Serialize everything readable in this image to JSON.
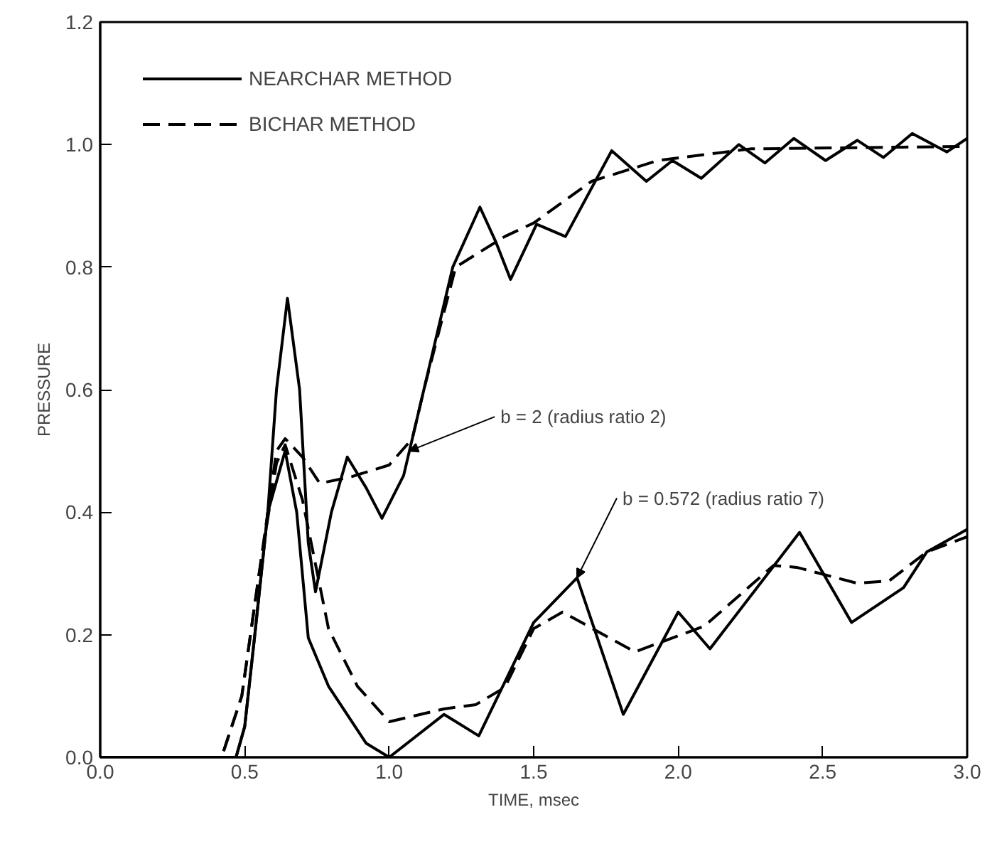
{
  "chart_data": {
    "type": "line",
    "xlabel": "TIME, msec",
    "ylabel": "PRESSURE",
    "xlim": [
      0,
      3.0
    ],
    "ylim": [
      0,
      1.2
    ],
    "xticks": [
      {
        "value": 0,
        "label": "0.0"
      },
      {
        "value": 0.5,
        "label": "0.5"
      },
      {
        "value": 1.0,
        "label": "1.0"
      },
      {
        "value": 1.5,
        "label": "1.5"
      },
      {
        "value": 2.0,
        "label": "2.0"
      },
      {
        "value": 2.5,
        "label": "2.5"
      },
      {
        "value": 3.0,
        "label": "3.0"
      }
    ],
    "yticks": [
      {
        "value": 0,
        "label": "0.0"
      },
      {
        "value": 0.2,
        "label": "0.2"
      },
      {
        "value": 0.4,
        "label": "0.4"
      },
      {
        "value": 0.6,
        "label": "0.6"
      },
      {
        "value": 0.8,
        "label": "0.8"
      },
      {
        "value": 1.0,
        "label": "1.0"
      },
      {
        "value": 1.2,
        "label": "1.2"
      }
    ],
    "grid": false,
    "legend": "top left",
    "marker": "none",
    "series": [
      {
        "name": "NEARCHAR METHOD",
        "color": "#000000",
        "line_style": "solid",
        "x": [
          0,
          0.47,
          0.5,
          0.535,
          0.58,
          0.61,
          0.648,
          0.69,
          0.72,
          0.745,
          0.8,
          0.855,
          0.92,
          0.975,
          1.05,
          1.12,
          1.22,
          1.314,
          1.37,
          1.42,
          1.51,
          1.61,
          1.77,
          1.89,
          1.98,
          2.08,
          2.21,
          2.3,
          2.4,
          2.51,
          2.62,
          2.71,
          2.81,
          2.93,
          3.0
        ],
        "values": [
          0,
          0,
          0.05,
          0.2,
          0.4,
          0.6,
          0.749,
          0.6,
          0.35,
          0.27,
          0.4,
          0.49,
          0.44,
          0.39,
          0.46,
          0.6,
          0.8,
          0.898,
          0.84,
          0.78,
          0.87,
          0.85,
          0.99,
          0.94,
          0.974,
          0.945,
          1.0,
          0.97,
          1.01,
          0.974,
          1.007,
          0.979,
          1.018,
          0.988,
          1.01
        ]
      },
      {
        "name": "BICHAR METHOD",
        "color": "#000000",
        "line_style": "dashed",
        "x": [
          0,
          0.42,
          0.49,
          0.55,
          0.61,
          0.64,
          0.7,
          0.76,
          0.87,
          1.0,
          1.08,
          1.12,
          1.23,
          1.4,
          1.5,
          1.7,
          1.93,
          2.25,
          3.0
        ],
        "values": [
          0,
          0,
          0.1,
          0.3,
          0.5,
          0.52,
          0.49,
          0.447,
          0.458,
          0.477,
          0.52,
          0.6,
          0.8,
          0.85,
          0.872,
          0.94,
          0.974,
          0.993,
          0.997
        ]
      },
      {
        "color": "#000000",
        "line_style": "solid",
        "x": [
          0,
          0.47,
          0.5,
          0.535,
          0.58,
          0.64,
          0.68,
          0.72,
          0.79,
          0.92,
          1.0,
          1.19,
          1.31,
          1.5,
          1.65,
          1.81,
          2.0,
          2.11,
          2.42,
          2.6,
          2.78,
          2.86,
          3.0
        ],
        "values": [
          0,
          0,
          0.05,
          0.2,
          0.4,
          0.5,
          0.4,
          0.195,
          0.116,
          0.023,
          0,
          0.07,
          0.035,
          0.22,
          0.293,
          0.07,
          0.237,
          0.177,
          0.367,
          0.22,
          0.277,
          0.335,
          0.372
        ]
      },
      {
        "color": "#000000",
        "line_style": "dashed",
        "x": [
          0,
          0.42,
          0.49,
          0.55,
          0.61,
          0.64,
          0.7,
          0.79,
          0.89,
          1.0,
          1.19,
          1.3,
          1.4,
          1.5,
          1.6,
          1.85,
          2.09,
          2.33,
          2.41,
          2.62,
          2.73,
          2.86,
          3.0
        ],
        "values": [
          0,
          0,
          0.1,
          0.3,
          0.48,
          0.51,
          0.42,
          0.21,
          0.116,
          0.058,
          0.079,
          0.086,
          0.114,
          0.21,
          0.237,
          0.172,
          0.214,
          0.313,
          0.31,
          0.284,
          0.288,
          0.335,
          0.36
        ]
      }
    ],
    "annotations": [
      {
        "text": "b = 2 (radius ratio 2)",
        "x": 1.07,
        "y": 0.5
      },
      {
        "text": "b = 0.572 (radius ratio 7)",
        "x": 1.65,
        "y": 0.293
      }
    ]
  }
}
